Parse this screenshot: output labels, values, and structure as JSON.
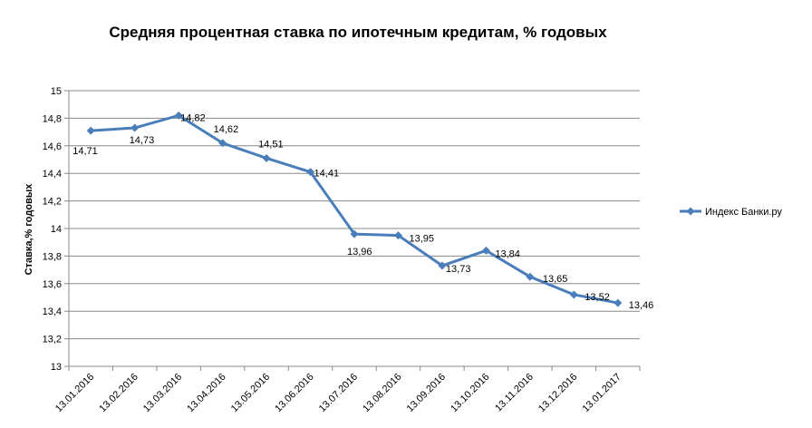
{
  "chart_data": {
    "type": "line",
    "title": "Средняя процентная  ставка по ипотечным кредитам, % годовых",
    "ylabel": "Ставка,%  годовых",
    "xlabel": "",
    "ylim": [
      13,
      15
    ],
    "ystep": 0.2,
    "ytick_labels": [
      "13",
      "13,2",
      "13,4",
      "13,6",
      "13,8",
      "14",
      "14,2",
      "14,4",
      "14,6",
      "14,8",
      "15"
    ],
    "grid": true,
    "legend_position": "right",
    "categories": [
      "13.01.2016",
      "13.02.2016",
      "13.03.2016",
      "13.04.2016",
      "13.05.2016",
      "13.06.2016",
      "13.07.2016",
      "13.08.2016",
      "13.09.2016",
      "13.10.2016",
      "13.11.2016",
      "13.12.2016",
      "13.01.2017"
    ],
    "series": [
      {
        "name": "Индекс  Банки.ру",
        "color": "#4a7ebb",
        "values": [
          14.71,
          14.73,
          14.82,
          14.62,
          14.51,
          14.41,
          13.96,
          13.95,
          13.73,
          13.84,
          13.65,
          13.52,
          13.46
        ],
        "labels": [
          "14,71",
          "14,73",
          "14,82",
          "14,62",
          "14,51",
          "14,41",
          "13,96",
          "13,95",
          "13,73",
          "13,84",
          "13,65",
          "13,52",
          "13,46"
        ]
      }
    ]
  }
}
